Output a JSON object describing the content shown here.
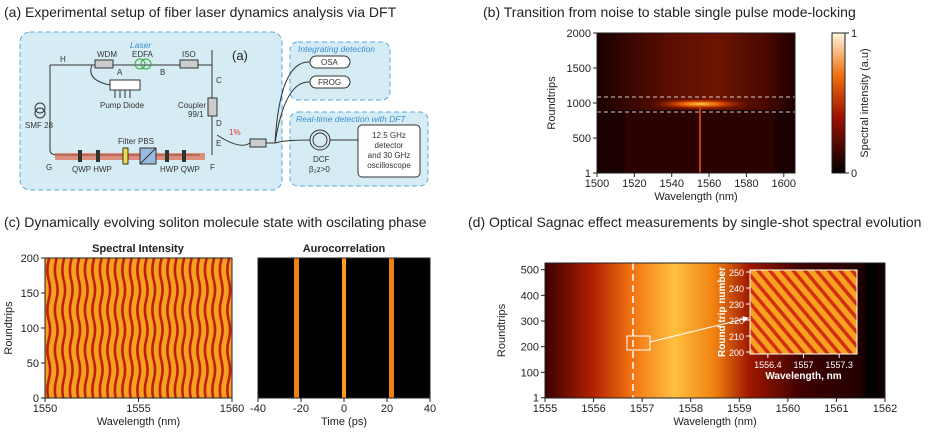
{
  "panel_a": {
    "title": "(a) Experimental setup of fiber laser dynamics analysis via DFT",
    "laser": "Laser",
    "edfa": "EDFA",
    "wdm": "WDM",
    "iso": "ISO",
    "panel_tag": "(a)",
    "node_a": "A",
    "node_b": "B",
    "node_c": "C",
    "node_d": "D",
    "node_e": "E",
    "node_f": "F",
    "node_g": "G",
    "node_h": "H",
    "pump": "Pump Diode",
    "smf": "SMF 28",
    "coupler": "Coupler",
    "coupler_ratio": "99/1",
    "tap": "1%",
    "filter_pbs": "Filter PBS",
    "left_plates": "QWP HWP",
    "right_plates": "HWP QWP",
    "integrating": "Integrating detection",
    "osa": "OSA",
    "frog": "FROG",
    "realtime": "Real-time detection with DFT",
    "dcf": "DCF",
    "dispersion": "β₂z>0",
    "detector": [
      "12.5 GHz",
      "detector",
      "and 30 GHz",
      "oscilloscope"
    ]
  },
  "panel_b": {
    "title": "(b) Transition from noise to stable single pulse mode-locking",
    "x_axis": {
      "label": "Wavelength (nm)",
      "lim": [
        1500,
        1606
      ],
      "ticks": [
        1500,
        1520,
        1540,
        1560,
        1580,
        1600
      ]
    },
    "y_axis": {
      "label": "Roundtrips",
      "lim": [
        1,
        2000
      ],
      "ticks": [
        1,
        500,
        1000,
        1500,
        2000
      ]
    },
    "colorbar": {
      "label": "Spectral intensity (a.u)",
      "lim": [
        0,
        1
      ],
      "ticks": [
        0,
        1
      ]
    }
  },
  "panel_c": {
    "title": "(c) Dynamically evolving soliton molecule state with oscilating phase",
    "left": {
      "title": "Spectral Intensity",
      "x_axis": {
        "label": "Wavelength (nm)",
        "lim": [
          1550,
          1560
        ],
        "ticks": [
          1550,
          1555,
          1560
        ]
      },
      "y_axis": {
        "label": "Roundtrips",
        "lim": [
          0,
          200
        ],
        "ticks": [
          0,
          50,
          100,
          150,
          200
        ]
      }
    },
    "right": {
      "title": "Aurocorrelation",
      "x_axis": {
        "label": "Time (ps)",
        "lim": [
          -40,
          40
        ],
        "ticks": [
          -40,
          -20,
          0,
          20,
          40
        ]
      }
    }
  },
  "panel_d": {
    "title": "(d) Optical Sagnac effect measurements by single-shot spectral evolution",
    "x_axis": {
      "label": "Wavelength (nm)",
      "lim": [
        1555,
        1562
      ],
      "ticks": [
        1555,
        1556,
        1557,
        1558,
        1559,
        1560,
        1561,
        1562
      ]
    },
    "y_axis": {
      "label": "Roundtrips",
      "lim": [
        0,
        526
      ],
      "ticks": [
        1,
        100,
        200,
        300,
        400,
        500
      ]
    },
    "inset": {
      "x_axis": {
        "label": "Wavelength, nm",
        "ticks": [
          1556.4,
          1557,
          1557.3
        ]
      },
      "y_axis": {
        "label": "Round trip number",
        "lim": [
          200,
          250
        ],
        "ticks": [
          200,
          210,
          220,
          230,
          240,
          250
        ]
      }
    }
  }
}
